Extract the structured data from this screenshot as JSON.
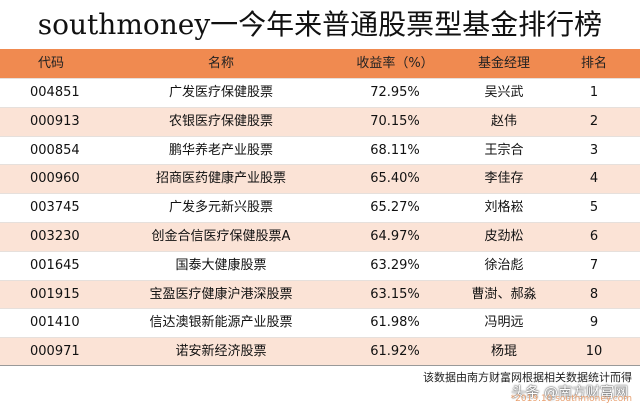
{
  "title": "southmoney一今年来普通股票型基金排行榜",
  "headers": {
    "code": "代码",
    "name": "名称",
    "return": "收益率（%）",
    "manager": "基金经理",
    "rank": "排名"
  },
  "rows": [
    {
      "code": "004851",
      "name": "广发医疗保健股票",
      "return": "72.95%",
      "manager": "吴兴武",
      "rank": "1"
    },
    {
      "code": "000913",
      "name": "农银医疗保健股票",
      "return": "70.15%",
      "manager": "赵伟",
      "rank": "2"
    },
    {
      "code": "000854",
      "name": "鹏华养老产业股票",
      "return": "68.11%",
      "manager": "王宗合",
      "rank": "3"
    },
    {
      "code": "000960",
      "name": "招商医药健康产业股票",
      "return": "65.40%",
      "manager": "李佳存",
      "rank": "4"
    },
    {
      "code": "003745",
      "name": "广发多元新兴股票",
      "return": "65.27%",
      "manager": "刘格崧",
      "rank": "5"
    },
    {
      "code": "003230",
      "name": "创金合信医疗保健股票A",
      "return": "64.97%",
      "manager": "皮劲松",
      "rank": "6"
    },
    {
      "code": "001645",
      "name": "国泰大健康股票",
      "return": "63.29%",
      "manager": "徐治彪",
      "rank": "7"
    },
    {
      "code": "001915",
      "name": "宝盈医疗健康沪港深股票",
      "return": "63.15%",
      "manager": "曹澍、郝淼",
      "rank": "8"
    },
    {
      "code": "001410",
      "name": "信达澳银新能源产业股票",
      "return": "61.98%",
      "manager": "冯明远",
      "rank": "9"
    },
    {
      "code": "000971",
      "name": "诺安新经济股票",
      "return": "61.92%",
      "manager": "杨琨",
      "rank": "10"
    }
  ],
  "footer": {
    "note": "该数据由南方财富网根据相关数据统计而得",
    "watermark": "头条 @南方财富网",
    "watermark_sub": "*2019.10 southmoney.com"
  }
}
